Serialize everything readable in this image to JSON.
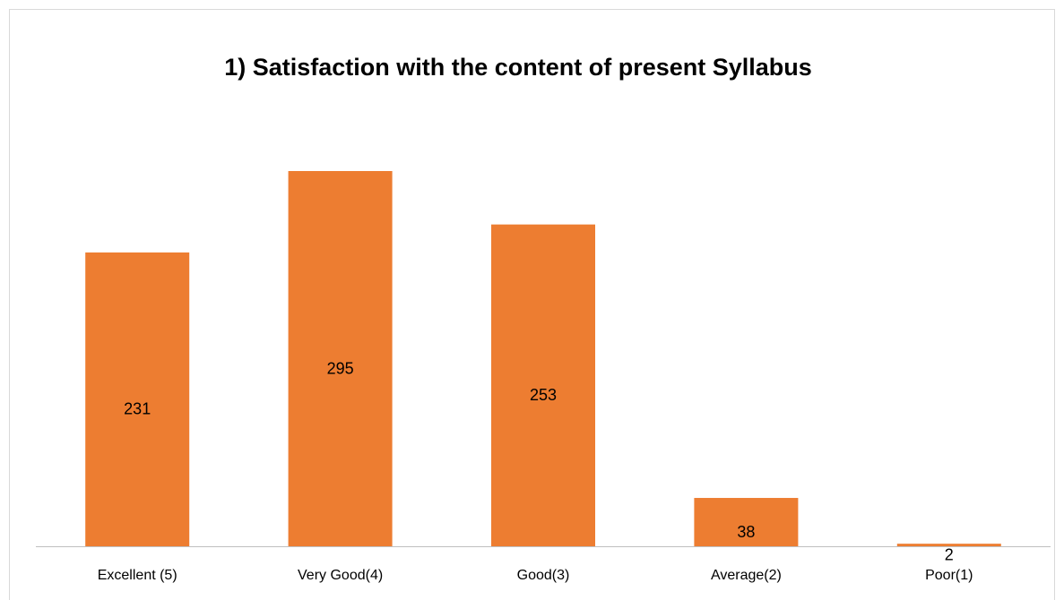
{
  "chart_data": {
    "type": "bar",
    "title": "1) Satisfaction with the content of present Syllabus",
    "categories": [
      "Excellent (5)",
      "Very Good(4)",
      "Good(3)",
      "Average(2)",
      "Poor(1)"
    ],
    "values": [
      231,
      295,
      253,
      38,
      2
    ],
    "color": "#ed7d31"
  }
}
